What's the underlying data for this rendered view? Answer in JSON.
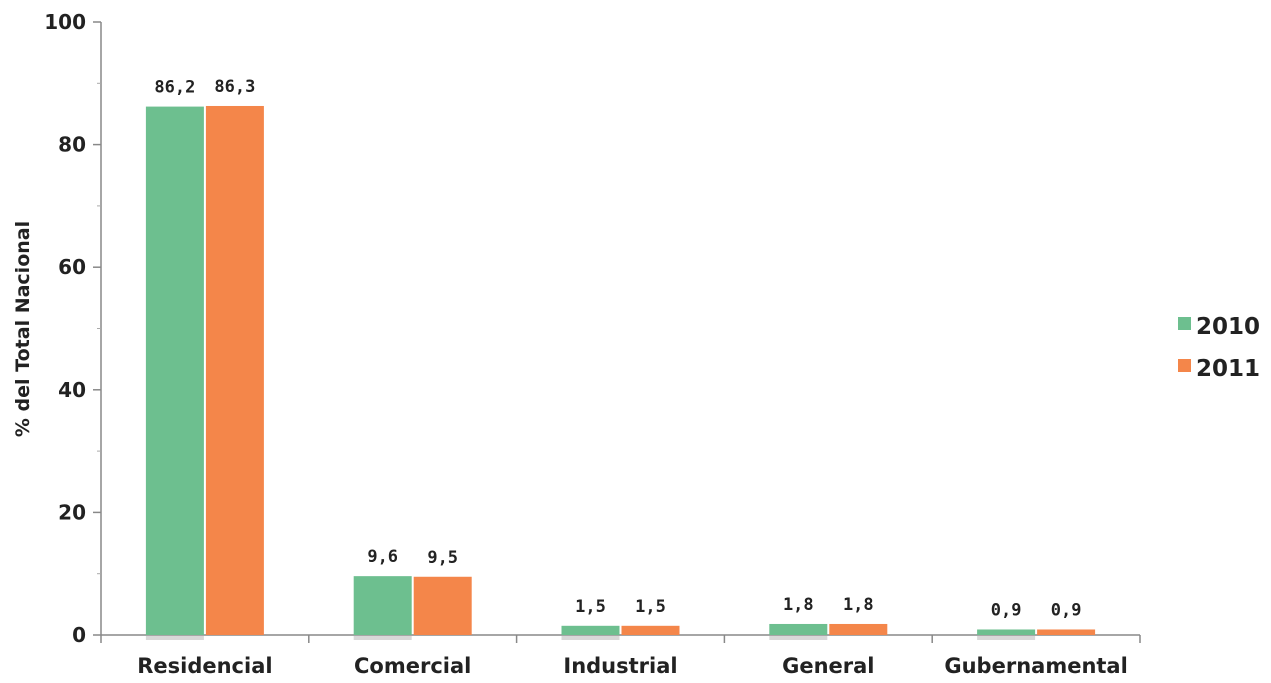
{
  "chart_data": {
    "type": "bar",
    "title": "",
    "xlabel": "",
    "ylabel": "% del Total Nacional",
    "ylim": [
      0,
      100
    ],
    "yticks": [
      0,
      20,
      40,
      60,
      80,
      100
    ],
    "categories": [
      "Residencial",
      "Comercial",
      "Industrial",
      "General",
      "Gubernamental"
    ],
    "series": [
      {
        "name": "2010",
        "color": "#6dbf8f",
        "values": [
          86.2,
          9.6,
          1.5,
          1.8,
          0.9
        ],
        "labels": [
          "86,2",
          "9,6",
          "1,5",
          "1,8",
          "0,9"
        ]
      },
      {
        "name": "2011",
        "color": "#f4864a",
        "values": [
          86.3,
          9.5,
          1.5,
          1.8,
          0.9
        ],
        "labels": [
          "86,3",
          "9,5",
          "1,5",
          "1,8",
          "0,9"
        ]
      }
    ],
    "legend_position": "right",
    "grid": false
  }
}
